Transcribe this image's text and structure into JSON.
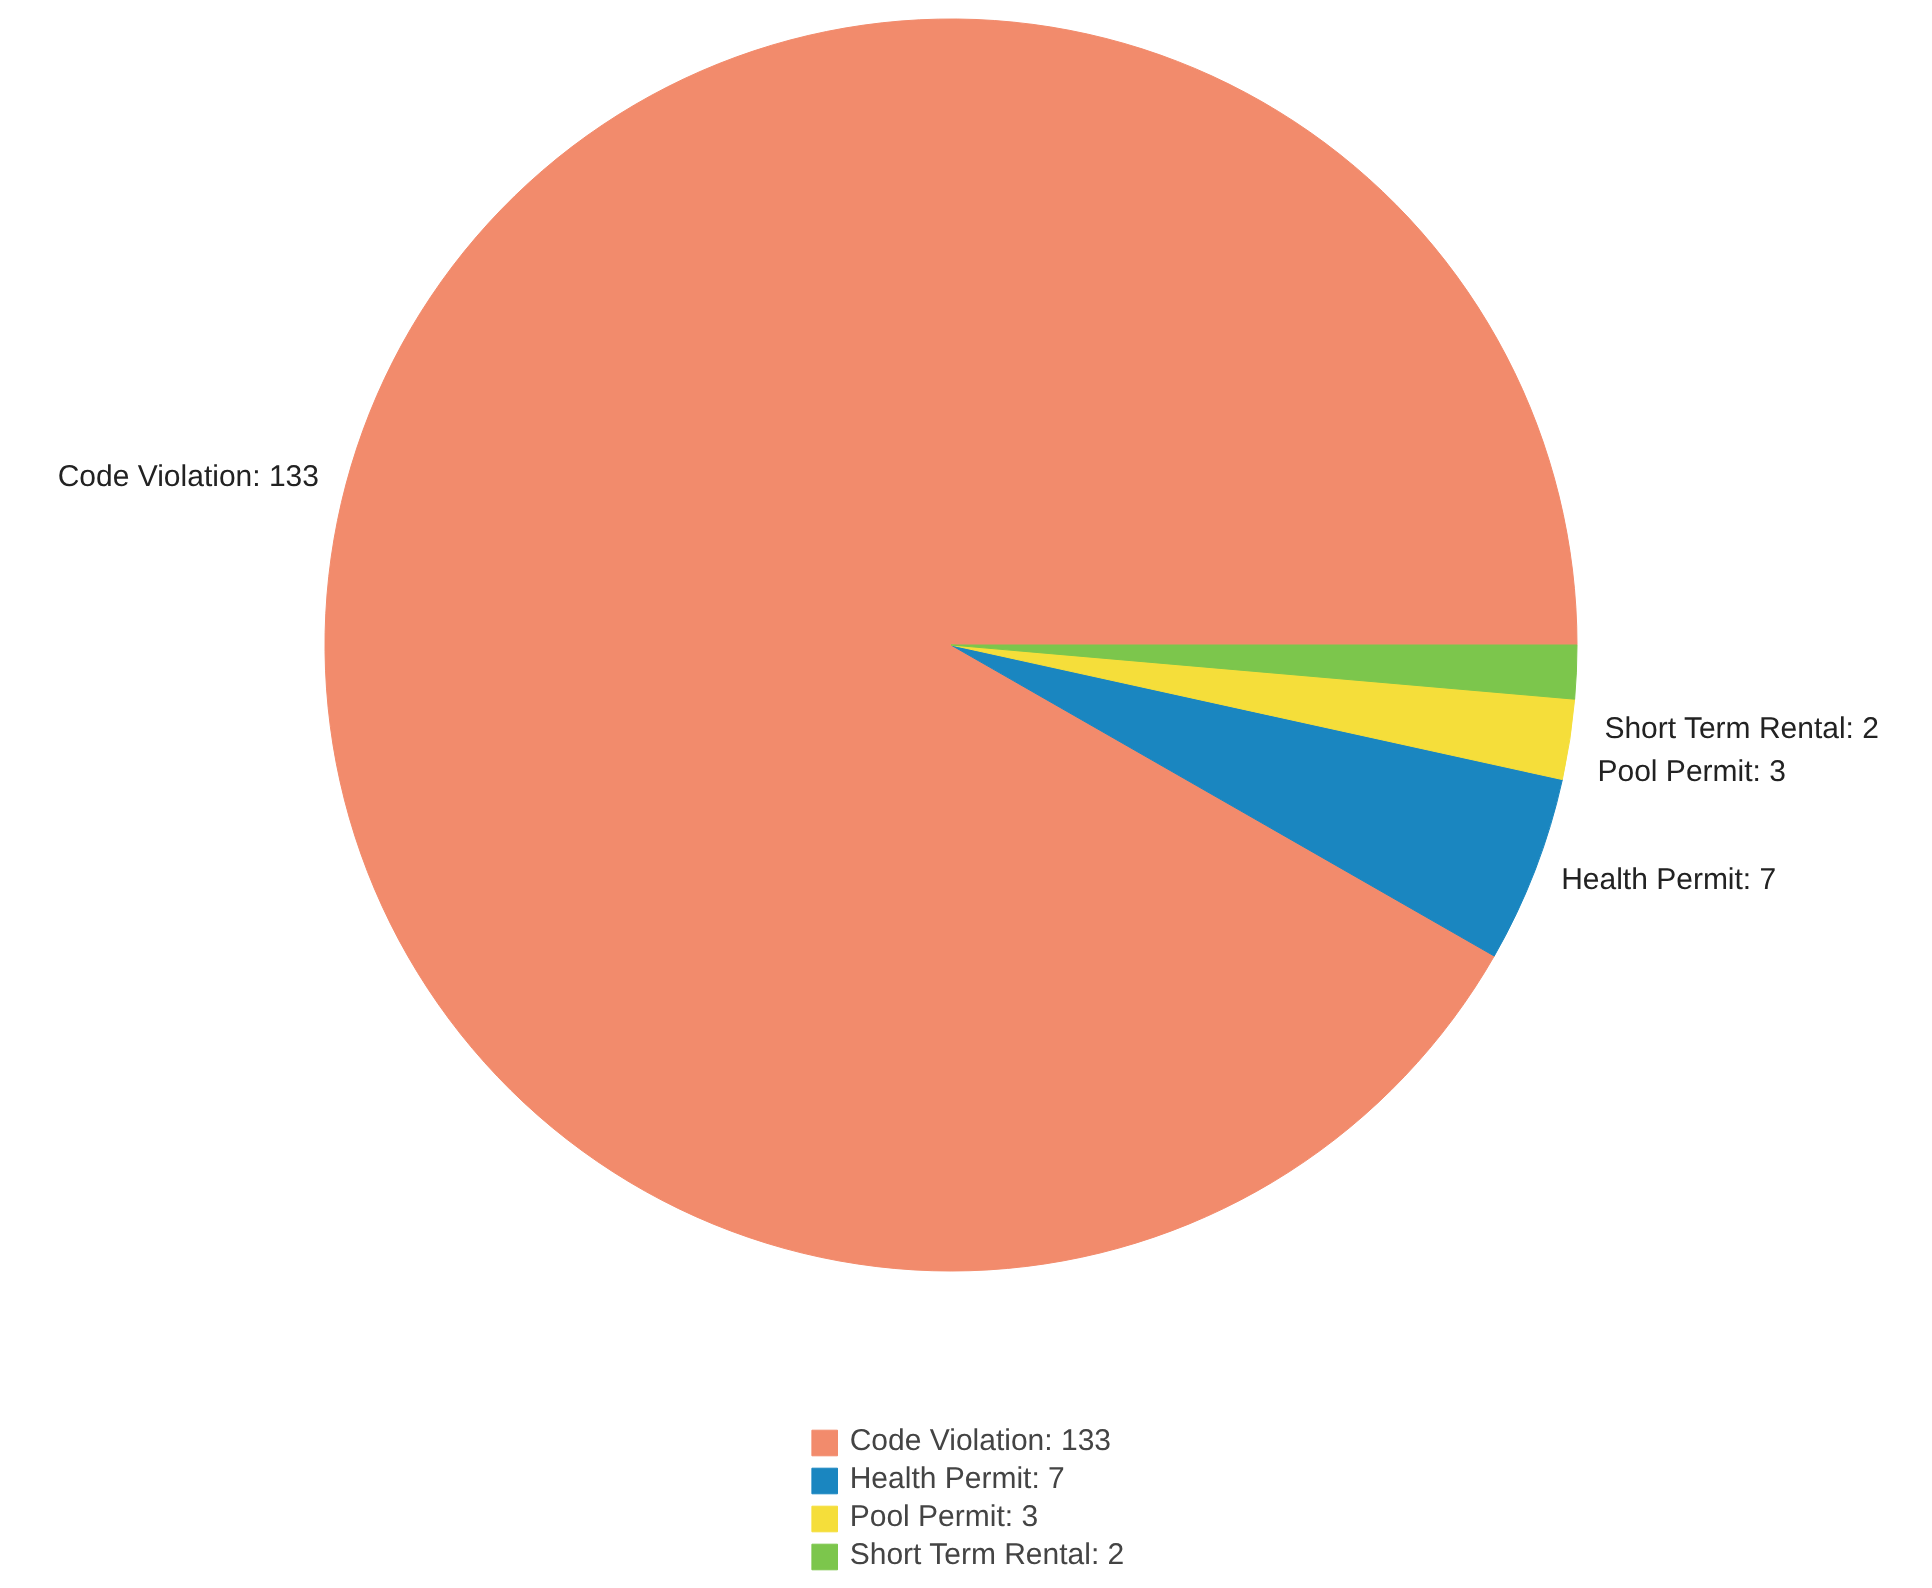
{
  "chart_data": {
    "type": "pie",
    "categories": [
      "Code Violation: 133",
      "Health Permit: 7",
      "Pool Permit: 3",
      "Short Term Rental: 2"
    ],
    "values": [
      133,
      7,
      3,
      2
    ],
    "colors": [
      "#f28b6c",
      "#1a86c0",
      "#f5de3a",
      "#7cc64c"
    ],
    "legend": "bottom"
  }
}
